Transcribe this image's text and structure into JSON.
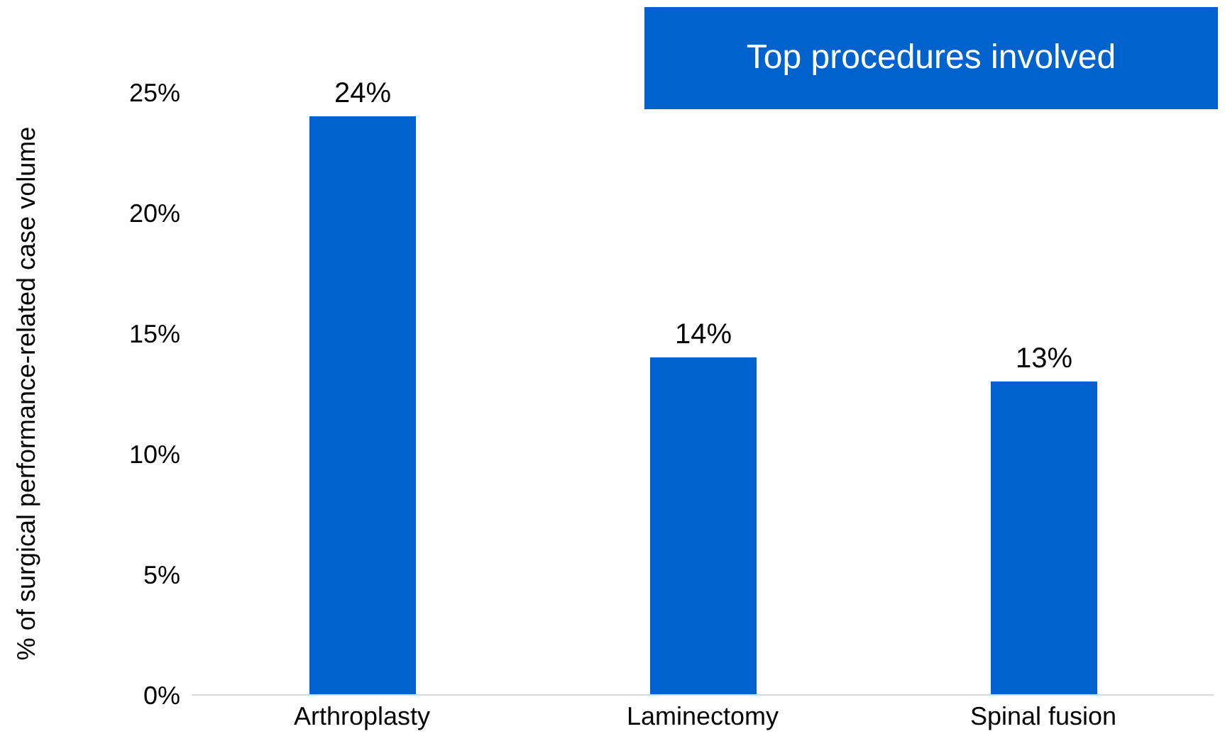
{
  "chart_data": {
    "type": "bar",
    "title": "Top procedures involved",
    "ylabel": "% of surgical performance-related case volume",
    "categories": [
      "Arthroplasty",
      "Laminectomy",
      "Spinal fusion"
    ],
    "values": [
      24,
      14,
      13
    ],
    "color": "#0062cc",
    "value_labels": [
      "24%",
      "14%",
      "13%"
    ],
    "ylim": [
      0,
      25
    ],
    "yticks": [
      {
        "value": 0,
        "label": "0%"
      },
      {
        "value": 5,
        "label": "5%"
      },
      {
        "value": 10,
        "label": "10%"
      },
      {
        "value": 15,
        "label": "15%"
      },
      {
        "value": 20,
        "label": "20%"
      },
      {
        "value": 25,
        "label": "25%"
      }
    ],
    "grid": false
  }
}
